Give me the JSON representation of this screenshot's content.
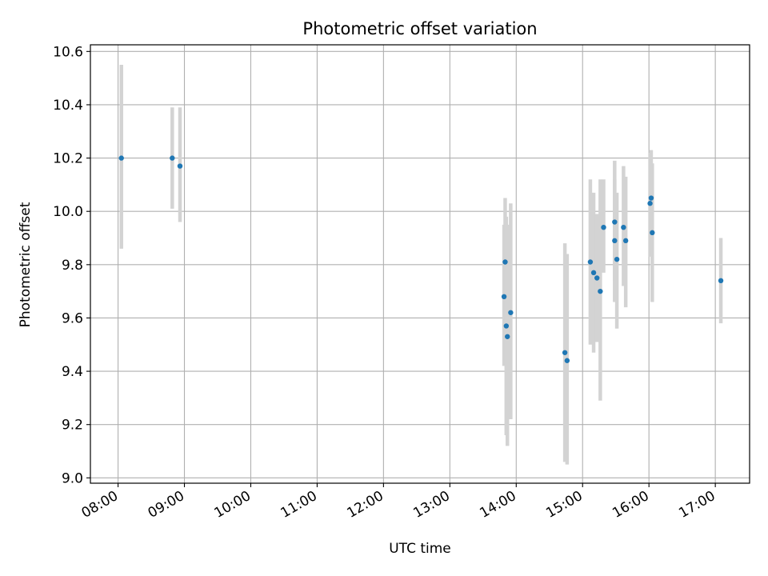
{
  "chart_data": {
    "type": "scatter",
    "title": "Photometric offset variation",
    "xlabel": "UTC time",
    "ylabel": "Photometric offset",
    "x_ticks": [
      "08:00",
      "09:00",
      "10:00",
      "11:00",
      "12:00",
      "13:00",
      "14:00",
      "15:00",
      "16:00",
      "17:00"
    ],
    "y_ticks": [
      "9.0",
      "9.2",
      "9.4",
      "9.6",
      "9.8",
      "10.0",
      "10.2",
      "10.4",
      "10.6"
    ],
    "xlim": [
      "07:35",
      "17:31"
    ],
    "ylim": [
      8.98,
      10.625
    ],
    "grid": true,
    "colors": {
      "point": "#1f77b4",
      "errorbar": "#d3d3d3",
      "grid": "#b0b0b0"
    },
    "points": [
      {
        "x": "08:03",
        "y": 10.2,
        "ylo": 9.86,
        "yhi": 10.55
      },
      {
        "x": "08:49",
        "y": 10.2,
        "ylo": 10.01,
        "yhi": 10.39
      },
      {
        "x": "08:56",
        "y": 10.17,
        "ylo": 9.96,
        "yhi": 10.39
      },
      {
        "x": "13:49",
        "y": 9.68,
        "ylo": 9.42,
        "yhi": 9.95
      },
      {
        "x": "13:50",
        "y": 9.81,
        "ylo": 9.57,
        "yhi": 10.05
      },
      {
        "x": "13:51",
        "y": 9.57,
        "ylo": 9.16,
        "yhi": 9.98
      },
      {
        "x": "13:52",
        "y": 9.53,
        "ylo": 9.12,
        "yhi": 9.95
      },
      {
        "x": "13:55",
        "y": 9.62,
        "ylo": 9.22,
        "yhi": 10.03
      },
      {
        "x": "14:44",
        "y": 9.47,
        "ylo": 9.06,
        "yhi": 9.88
      },
      {
        "x": "14:46",
        "y": 9.44,
        "ylo": 9.05,
        "yhi": 9.84
      },
      {
        "x": "15:07",
        "y": 9.81,
        "ylo": 9.5,
        "yhi": 10.12
      },
      {
        "x": "15:10",
        "y": 9.77,
        "ylo": 9.47,
        "yhi": 10.07
      },
      {
        "x": "15:13",
        "y": 9.75,
        "ylo": 9.51,
        "yhi": 9.99
      },
      {
        "x": "15:16",
        "y": 9.7,
        "ylo": 9.29,
        "yhi": 10.12
      },
      {
        "x": "15:19",
        "y": 9.94,
        "ylo": 9.77,
        "yhi": 10.12
      },
      {
        "x": "15:29",
        "y": 9.96,
        "ylo": 9.74,
        "yhi": 10.19
      },
      {
        "x": "15:29",
        "y": 9.89,
        "ylo": 9.66,
        "yhi": 10.12
      },
      {
        "x": "15:31",
        "y": 9.82,
        "ylo": 9.56,
        "yhi": 10.07
      },
      {
        "x": "15:37",
        "y": 9.94,
        "ylo": 9.72,
        "yhi": 10.17
      },
      {
        "x": "15:39",
        "y": 9.89,
        "ylo": 9.64,
        "yhi": 10.13
      },
      {
        "x": "16:01",
        "y": 10.03,
        "ylo": 9.83,
        "yhi": 10.22
      },
      {
        "x": "16:02",
        "y": 10.05,
        "ylo": 9.86,
        "yhi": 10.23
      },
      {
        "x": "16:03",
        "y": 9.92,
        "ylo": 9.66,
        "yhi": 10.18
      },
      {
        "x": "17:05",
        "y": 9.74,
        "ylo": 9.58,
        "yhi": 9.9
      }
    ]
  }
}
